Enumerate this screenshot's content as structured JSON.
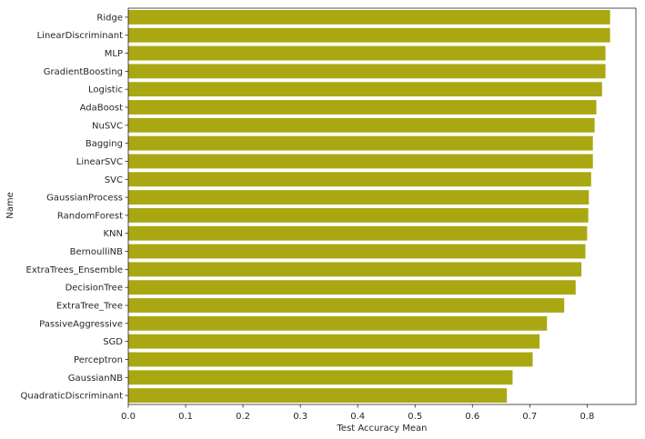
{
  "chart_data": {
    "type": "bar",
    "orientation": "horizontal",
    "xlabel": "Test Accuracy Mean",
    "ylabel": "Name",
    "xlim": [
      0.0,
      0.885
    ],
    "xticks": [
      "0.0",
      "0.1",
      "0.2",
      "0.3",
      "0.4",
      "0.5",
      "0.6",
      "0.7",
      "0.8"
    ],
    "grid": false,
    "bar_color": "#aaa812",
    "categories": [
      "Ridge",
      "LinearDiscriminant",
      "MLP",
      "GradientBoosting",
      "Logistic",
      "AdaBoost",
      "NuSVC",
      "Bagging",
      "LinearSVC",
      "SVC",
      "GaussianProcess",
      "RandomForest",
      "KNN",
      "BernoulliNB",
      "ExtraTrees_Ensemble",
      "DecisionTree",
      "ExtraTree_Tree",
      "PassiveAggressive",
      "SGD",
      "Perceptron",
      "GaussianNB",
      "QuadraticDiscriminant"
    ],
    "values": [
      0.84,
      0.84,
      0.832,
      0.832,
      0.826,
      0.816,
      0.813,
      0.81,
      0.81,
      0.807,
      0.803,
      0.802,
      0.8,
      0.797,
      0.79,
      0.78,
      0.76,
      0.73,
      0.717,
      0.705,
      0.67,
      0.66
    ]
  }
}
